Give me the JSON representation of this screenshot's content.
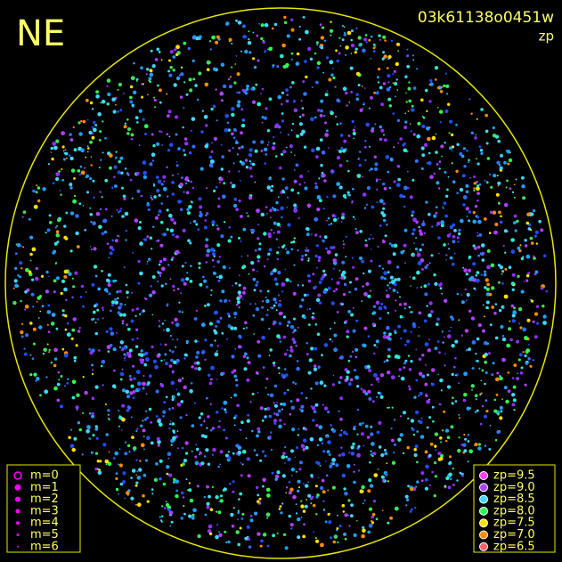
{
  "header": {
    "direction": "NE",
    "image_id": "03k61138o0451w",
    "mode": "zp"
  },
  "magnitude_legend": {
    "items": [
      "m=0",
      "m=1",
      "m=2",
      "m=3",
      "m=4",
      "m=5",
      "m=6"
    ],
    "color": "#ff00ff"
  },
  "zp_legend": {
    "items": [
      {
        "label": "zp=9.5",
        "color": "#ff40ff"
      },
      {
        "label": "zp=9.0",
        "color": "#b040ff"
      },
      {
        "label": "zp=8.5",
        "color": "#40d8ff"
      },
      {
        "label": "zp=8.0",
        "color": "#30ff50"
      },
      {
        "label": "zp=7.5",
        "color": "#ffe000"
      },
      {
        "label": "zp=7.0",
        "color": "#ff8c00"
      },
      {
        "label": "zp=6.5",
        "color": "#ff6070"
      }
    ]
  }
}
